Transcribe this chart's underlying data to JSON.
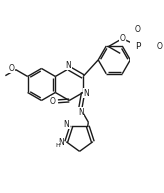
{
  "bg": "#ffffff",
  "lc": "#1a1a1a",
  "lw": 1.0,
  "fs": 5.5,
  "figsize": [
    1.64,
    1.93
  ],
  "dpi": 100,
  "xlim": [
    -2.5,
    5.5
  ],
  "ylim": [
    -5.0,
    3.5
  ]
}
